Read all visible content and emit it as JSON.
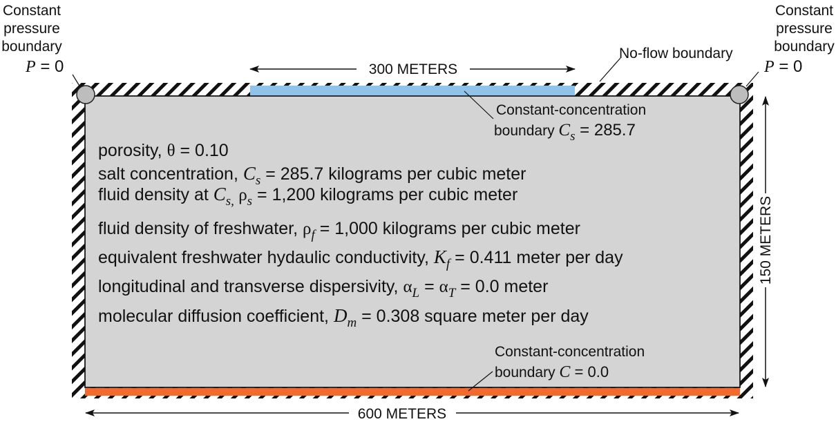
{
  "corner_left": {
    "line1": "Constant",
    "line2": "pressure",
    "line3": "boundary",
    "eq_var": "P",
    "eq_rest": " = 0"
  },
  "corner_right": {
    "line1": "Constant",
    "line2": "pressure",
    "line3": "boundary",
    "eq_var": "P",
    "eq_rest": " = 0"
  },
  "no_flow_label": "No-flow boundary",
  "dim_top": "300 METERS",
  "dim_bottom": "600 METERS",
  "dim_right": "150 METERS",
  "top_conc": {
    "line1": "Constant-concentration",
    "line2_pre": "boundary ",
    "var": "C",
    "sub": "s",
    "rest": " = 285.7"
  },
  "bottom_conc": {
    "line1": "Constant-concentration",
    "line2_pre": "boundary ",
    "var": "C",
    "rest": " = 0.0"
  },
  "props": {
    "porosity_pre": "porosity, ",
    "porosity_sym": "θ",
    "porosity_val": " = 0.10",
    "salt_pre": "salt concentration, ",
    "salt_var": "C",
    "salt_sub": "s",
    "salt_val": " = 285.7 kilograms per cubic meter",
    "dens_pre": "fluid density at ",
    "dens_var": "C",
    "dens_sub": "s,",
    "dens_sym": " ρ",
    "dens_sym_sub": "s",
    "dens_val": " = 1,200 kilograms per cubic meter",
    "fresh_pre": "fluid density of freshwater, ",
    "fresh_sym": "ρ",
    "fresh_sub": "f",
    "fresh_val": " = 1,000 kilograms per cubic meter",
    "cond_pre": "equivalent freshwater hydaulic conductivity, ",
    "cond_var": "K",
    "cond_sub": "f",
    "cond_val": " = 0.411 meter per day",
    "disp_pre": "longitudinal and transverse dispersivity, ",
    "disp_sym1": "α",
    "disp_sub1": "L",
    "disp_mid": " = ",
    "disp_sym2": "α",
    "disp_sub2": "T",
    "disp_val": " = 0.0 meter",
    "diff_pre": "molecular diffusion coefficient, ",
    "diff_var": "D",
    "diff_sub": "m",
    "diff_val": " = 0.308 square meter per day"
  },
  "colors": {
    "domain_fill": "#d4d4d4",
    "top_boundary": "#8fc3ea",
    "bottom_boundary": "#f26a2d",
    "corner_node": "#bdbdbd"
  }
}
